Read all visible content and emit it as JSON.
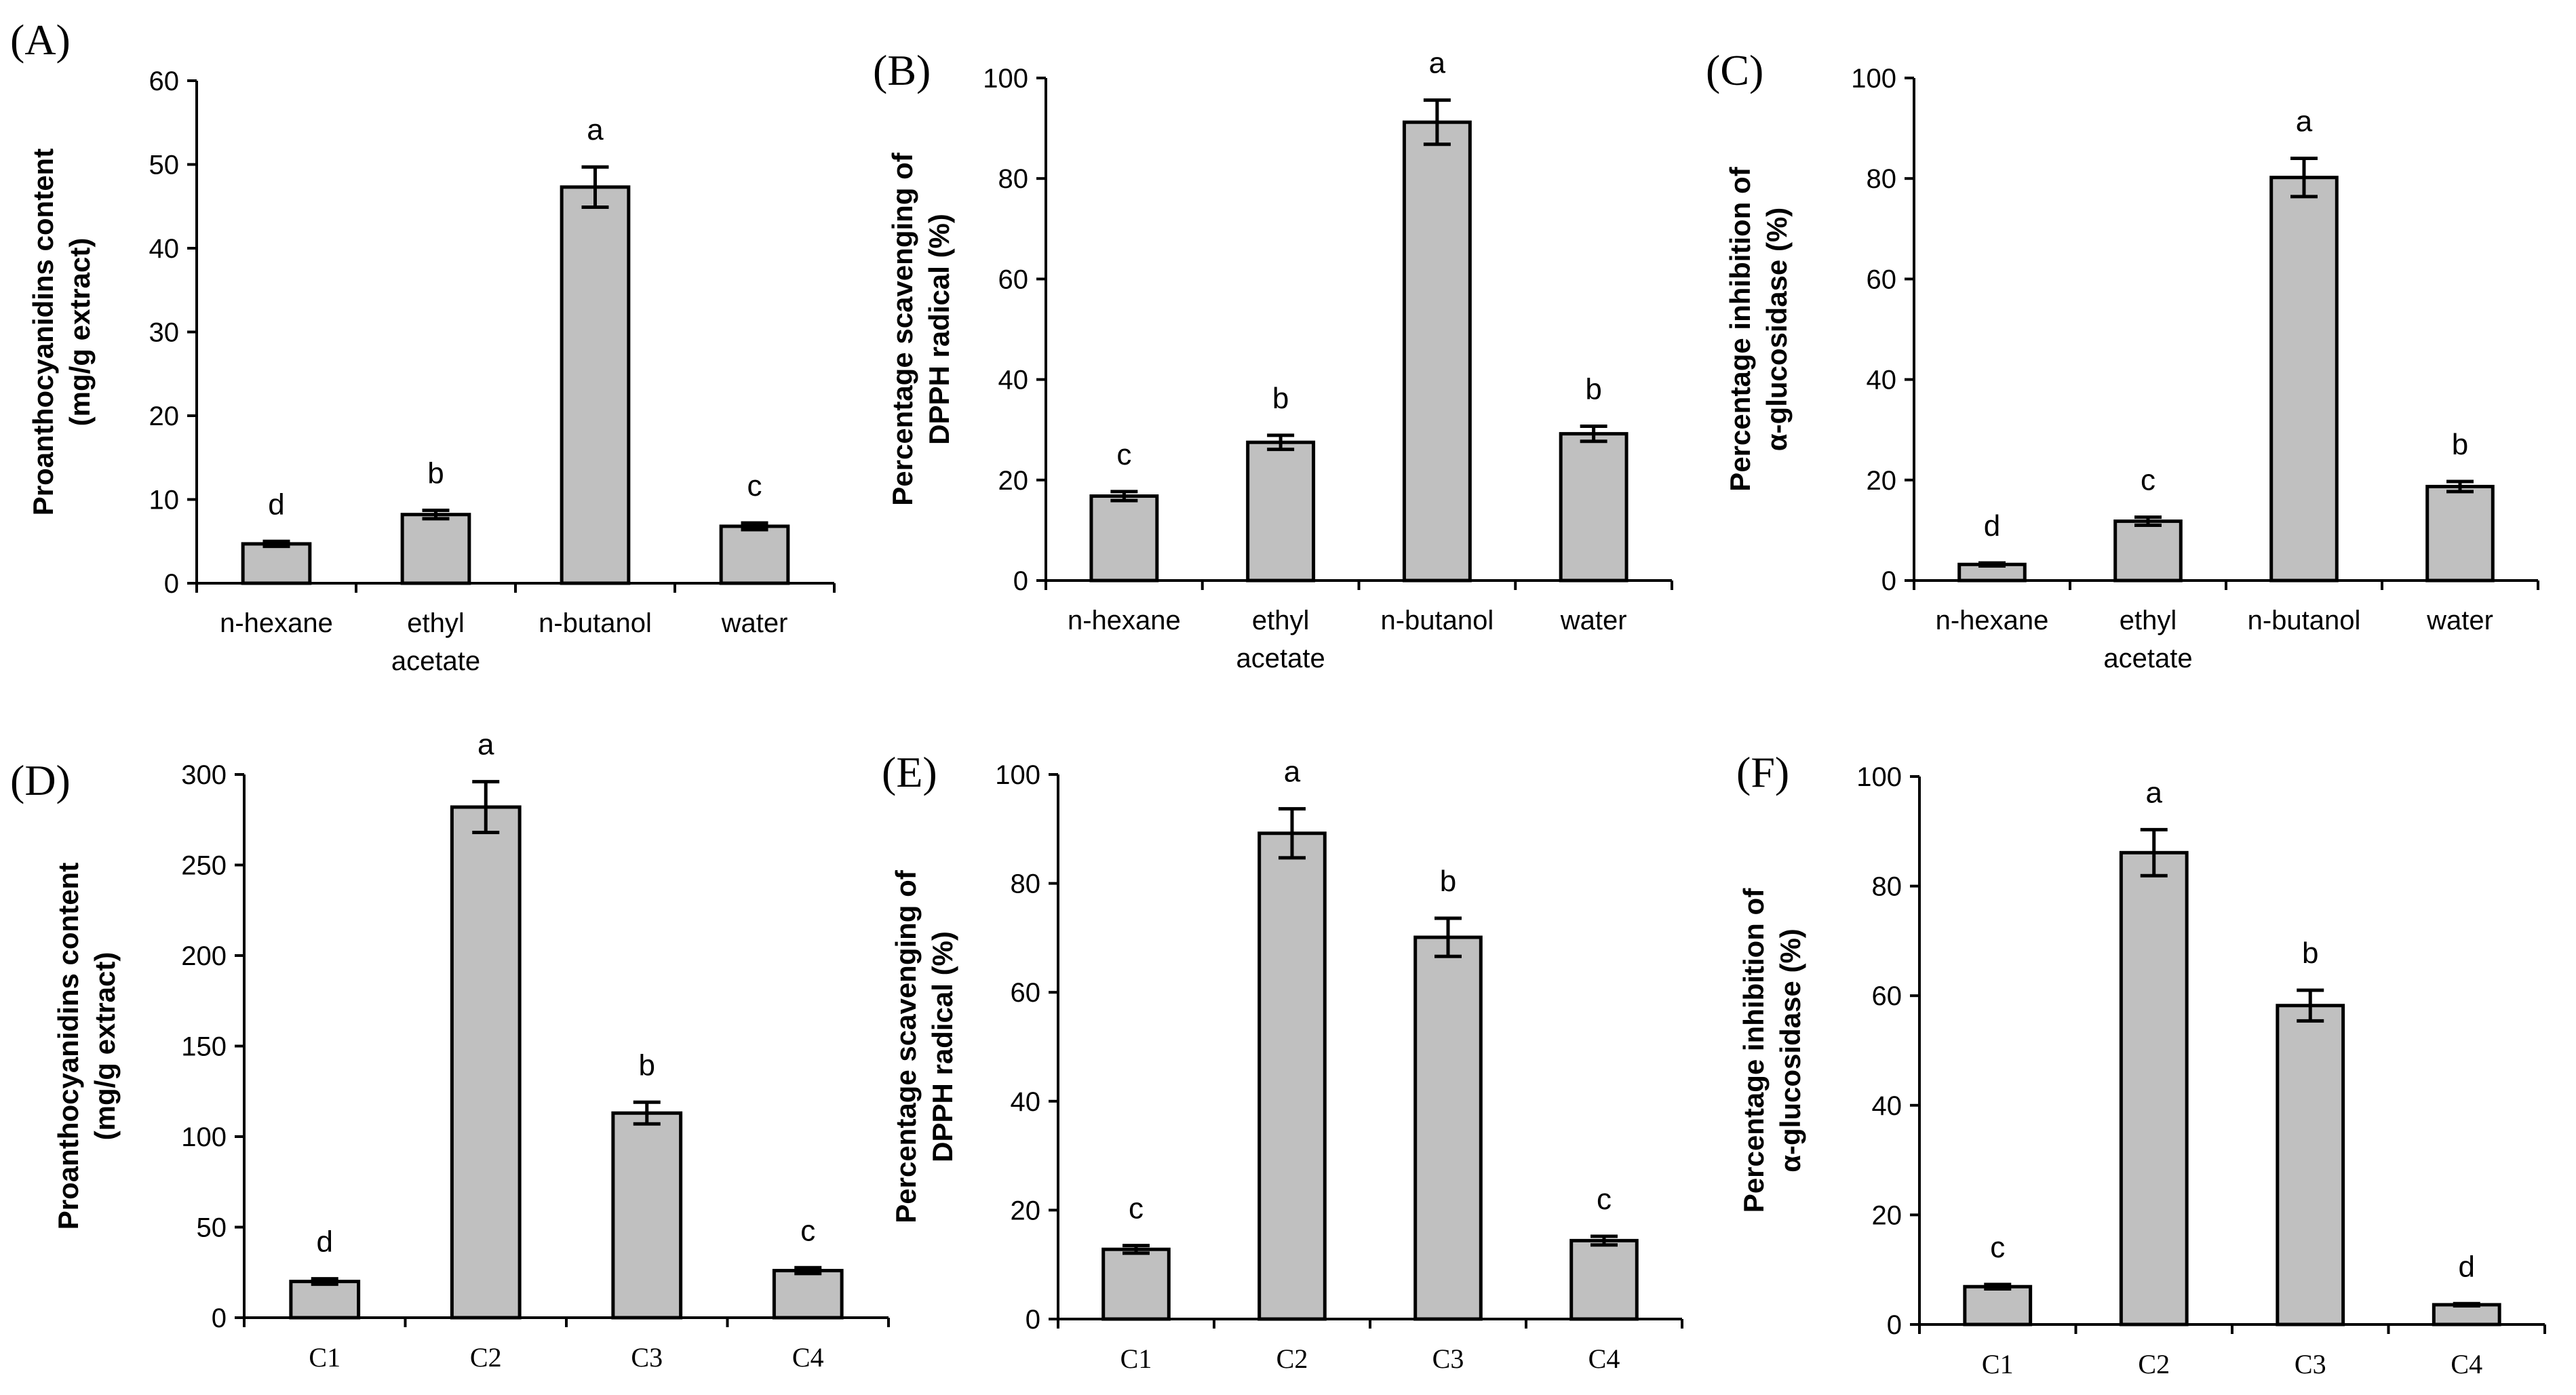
{
  "chart_data": [
    {
      "panel": "(A)",
      "type": "bar",
      "ylabel_lines": [
        "Proanthocyanidins content",
        "(mg/g extract)"
      ],
      "categories": [
        [
          "n-hexane"
        ],
        [
          "ethyl",
          "acetate"
        ],
        [
          "n-butanol"
        ],
        [
          "water"
        ]
      ],
      "values": [
        4.7,
        8.2,
        47.3,
        6.8
      ],
      "errors": [
        0.3,
        0.5,
        2.4,
        0.4
      ],
      "sig": [
        "d",
        "b",
        "a",
        "c"
      ],
      "ylim": [
        0,
        60
      ],
      "yticks": [
        0,
        10,
        20,
        30,
        40,
        50,
        60
      ],
      "grid": false
    },
    {
      "panel": "(B)",
      "type": "bar",
      "ylabel_lines": [
        "Percentage scavenging of",
        "DPPH radical (%)"
      ],
      "categories": [
        [
          "n-hexane"
        ],
        [
          "ethyl",
          "acetate"
        ],
        [
          "n-butanol"
        ],
        [
          "water"
        ]
      ],
      "values": [
        16.8,
        27.5,
        91.2,
        29.2
      ],
      "errors": [
        0.9,
        1.4,
        4.4,
        1.5
      ],
      "sig": [
        "c",
        "b",
        "a",
        "b"
      ],
      "ylim": [
        0,
        100
      ],
      "yticks": [
        0,
        20,
        40,
        60,
        80,
        100
      ],
      "grid": false
    },
    {
      "panel": "(C)",
      "type": "bar",
      "ylabel_lines": [
        "Percentage inhibition of",
        "α-glucosidase (%)"
      ],
      "categories": [
        [
          "n-hexane"
        ],
        [
          "ethyl",
          "acetate"
        ],
        [
          "n-butanol"
        ],
        [
          "water"
        ]
      ],
      "values": [
        3.2,
        11.8,
        80.2,
        18.7
      ],
      "errors": [
        0.3,
        0.8,
        3.8,
        1.0
      ],
      "sig": [
        "d",
        "c",
        "a",
        "b"
      ],
      "ylim": [
        0,
        100
      ],
      "yticks": [
        0,
        20,
        40,
        60,
        80,
        100
      ],
      "grid": false
    },
    {
      "panel": "(D)",
      "type": "bar",
      "ylabel_lines": [
        "Proanthocyanidins content",
        "(mg/g extract)"
      ],
      "categories": [
        [
          "C1"
        ],
        [
          "C2"
        ],
        [
          "C3"
        ],
        [
          "C4"
        ]
      ],
      "values": [
        20,
        282,
        113,
        26
      ],
      "errors": [
        1.5,
        14,
        6,
        1.6
      ],
      "sig": [
        "d",
        "a",
        "b",
        "c"
      ],
      "ylim": [
        0,
        300
      ],
      "yticks": [
        0,
        50,
        100,
        150,
        200,
        250,
        300
      ],
      "grid": false
    },
    {
      "panel": "(E)",
      "type": "bar",
      "ylabel_lines": [
        "Percentage scavenging of",
        "DPPH radical (%)"
      ],
      "categories": [
        [
          "C1"
        ],
        [
          "C2"
        ],
        [
          "C3"
        ],
        [
          "C4"
        ]
      ],
      "values": [
        12.8,
        89.2,
        70.1,
        14.4
      ],
      "errors": [
        0.7,
        4.5,
        3.5,
        0.8
      ],
      "sig": [
        "c",
        "a",
        "b",
        "c"
      ],
      "ylim": [
        0,
        100
      ],
      "yticks": [
        0,
        20,
        40,
        60,
        80,
        100
      ],
      "grid": false
    },
    {
      "panel": "(F)",
      "type": "bar",
      "ylabel_lines": [
        "Percentage inhibition of",
        "α-glucosidase (%)"
      ],
      "categories": [
        [
          "C1"
        ],
        [
          "C2"
        ],
        [
          "C3"
        ],
        [
          "C4"
        ]
      ],
      "values": [
        6.9,
        86.1,
        58.2,
        3.6
      ],
      "errors": [
        0.4,
        4.2,
        2.8,
        0.2
      ],
      "sig": [
        "c",
        "a",
        "b",
        "d"
      ],
      "ylim": [
        0,
        100
      ],
      "yticks": [
        0,
        20,
        40,
        60,
        80,
        100
      ],
      "grid": false
    }
  ],
  "colors": {
    "bar_fill": "#c0c0c0",
    "bar_stroke": "#000000"
  }
}
